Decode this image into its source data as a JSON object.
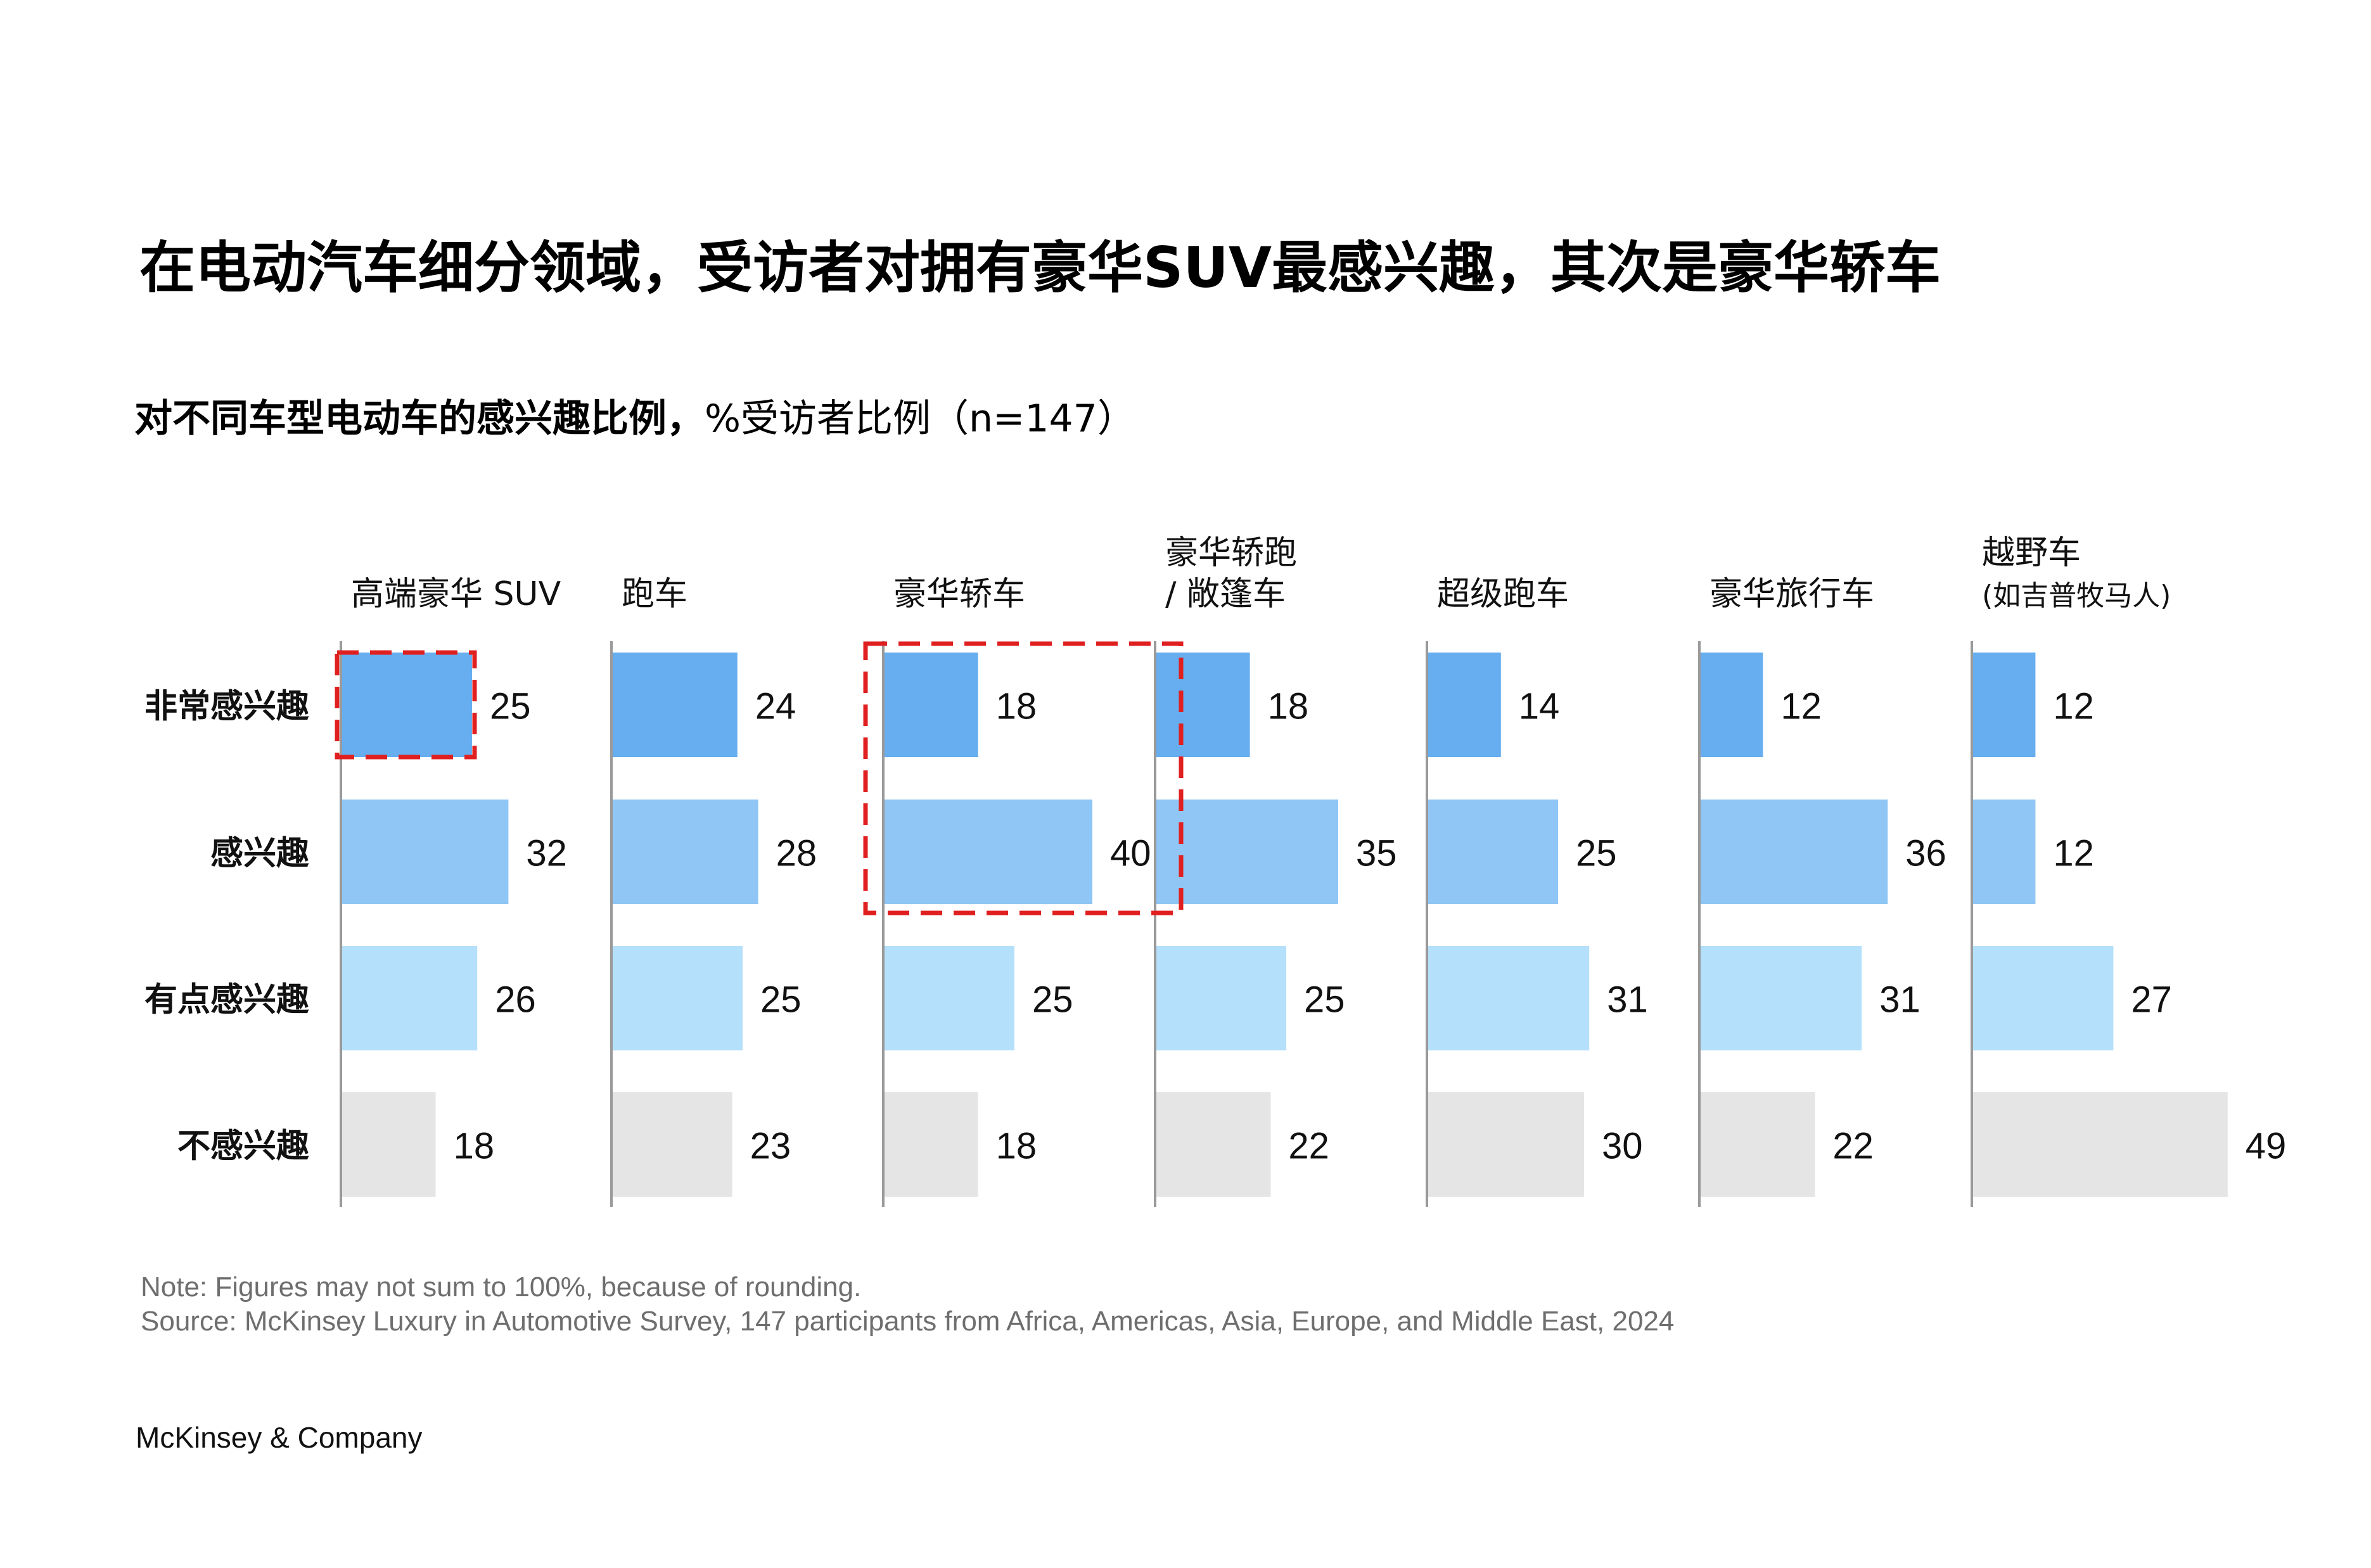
{
  "title": "在电动汽车细分领域，受访者对拥有豪华SUV最感兴趣，其次是豪华轿车",
  "subtitle_bold": "对不同车型电动车的感兴趣比例，",
  "subtitle_light": "%受访者比例（n=147）",
  "notes": [
    "Note: Figures may not sum to 100%, because of rounding.",
    "Source: McKinsey Luxury in Automotive Survey, 147 participants from Africa, Americas, Asia, Europe, and Middle East, 2024"
  ],
  "footer": "McKinsey & Company",
  "colors": {
    "very_interested": "#66aef0",
    "interested": "#8fc6f5",
    "somewhat_interested": "#b4e0fb",
    "not_interested": "#e5e5e5",
    "highlight": "#e02020",
    "axis": "#9a9a9a"
  },
  "chart_data": {
    "type": "bar",
    "orientation": "horizontal",
    "layout": "small-multiples",
    "rows": [
      "非常感兴趣",
      "感兴趣",
      "有点感兴趣",
      "不感兴趣"
    ],
    "categories": [
      {
        "label": [
          "高端豪华 SUV"
        ],
        "values": [
          25,
          32,
          26,
          18
        ]
      },
      {
        "label": [
          "跑车"
        ],
        "values": [
          24,
          28,
          25,
          23
        ]
      },
      {
        "label": [
          "豪华轿车"
        ],
        "values": [
          18,
          40,
          25,
          18
        ]
      },
      {
        "label": [
          "豪华轿跑",
          "/ 敞篷车"
        ],
        "values": [
          18,
          35,
          25,
          22
        ]
      },
      {
        "label": [
          "超级跑车"
        ],
        "values": [
          14,
          25,
          31,
          30
        ]
      },
      {
        "label": [
          "豪华旅行车"
        ],
        "values": [
          12,
          36,
          31,
          22
        ]
      },
      {
        "label": [
          "越野车",
          "(如吉普牧马人)"
        ],
        "values": [
          12,
          12,
          27,
          49
        ]
      }
    ],
    "highlights": [
      {
        "category": 0,
        "rows": [
          0,
          0
        ]
      },
      {
        "category": 2,
        "rows": [
          0,
          1
        ]
      }
    ],
    "grid": false
  }
}
